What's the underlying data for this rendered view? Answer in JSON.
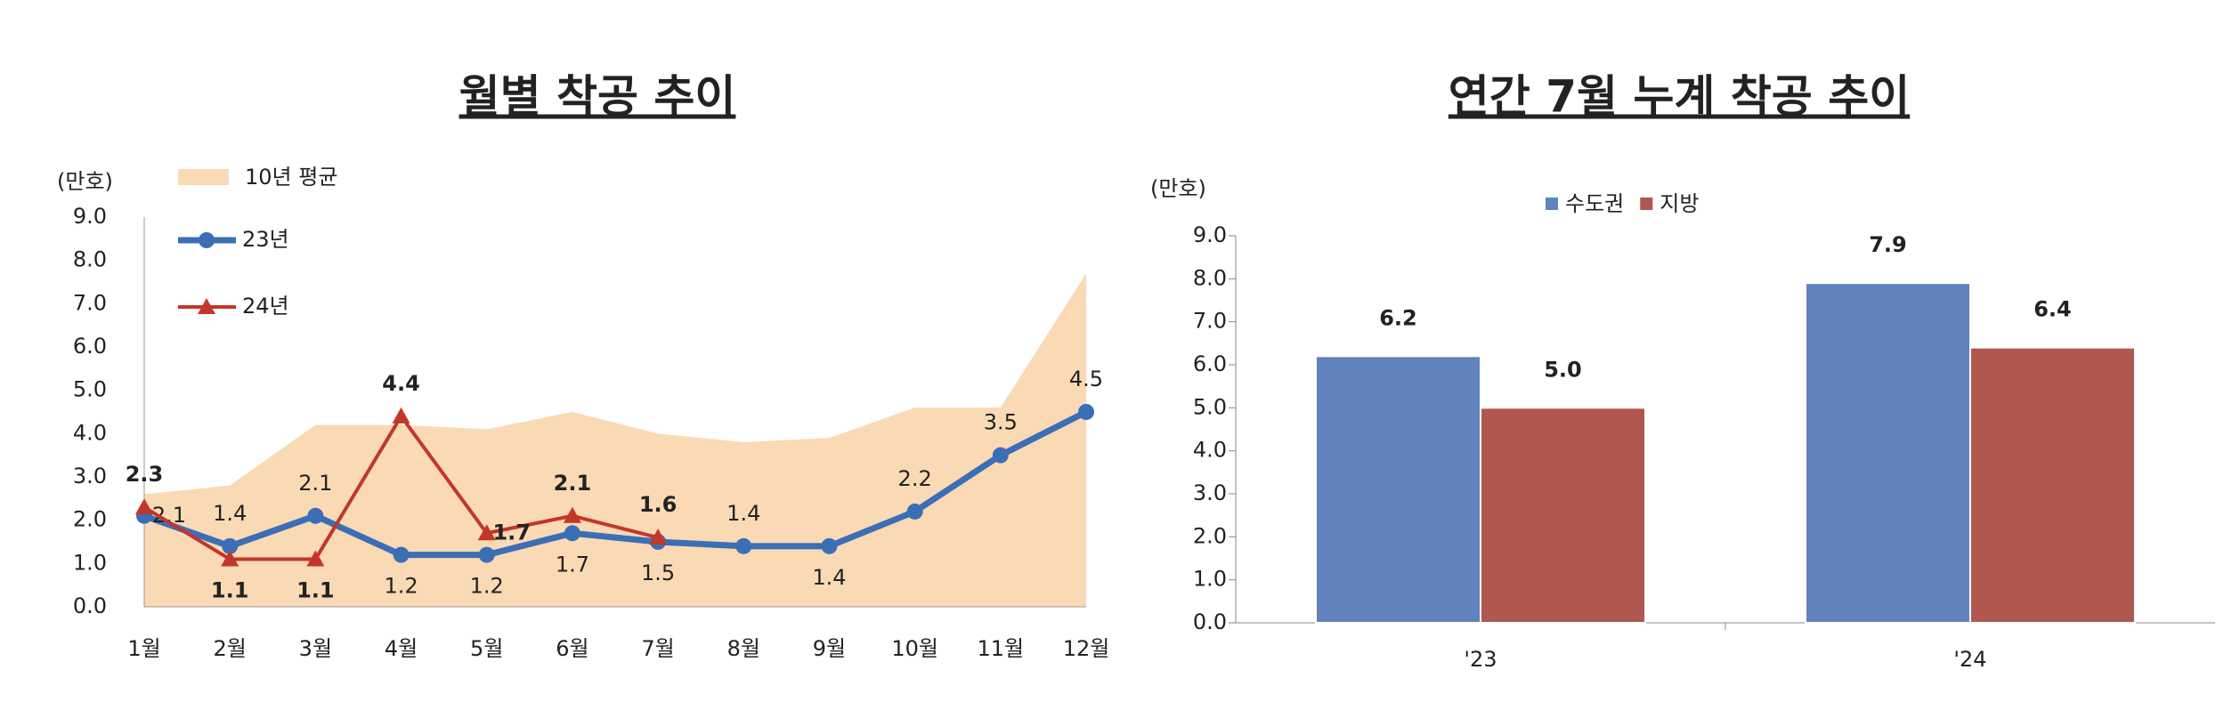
{
  "chart_data": [
    {
      "type": "line",
      "title": "월별 착공 추이",
      "y_label": "(만호)",
      "categories": [
        "1월",
        "2월",
        "3월",
        "4월",
        "5월",
        "6월",
        "7월",
        "8월",
        "9월",
        "10월",
        "11월",
        "12월"
      ],
      "series": [
        {
          "name": "10년 평균",
          "style": "area",
          "color": "#fad9b5",
          "values": [
            2.6,
            2.8,
            4.2,
            4.2,
            4.1,
            4.5,
            4.0,
            3.8,
            3.9,
            4.6,
            4.6,
            7.7
          ]
        },
        {
          "name": "23년",
          "style": "line",
          "marker": "circle",
          "color": "#3a6fb5",
          "values": [
            2.1,
            1.4,
            2.1,
            1.2,
            1.2,
            1.7,
            1.5,
            1.4,
            1.4,
            2.2,
            3.5,
            4.5
          ]
        },
        {
          "name": "24년",
          "style": "line",
          "marker": "triangle",
          "color": "#c3362b",
          "values": [
            2.3,
            1.1,
            1.1,
            4.4,
            1.7,
            2.1,
            1.6,
            null,
            null,
            null,
            null,
            null
          ]
        }
      ],
      "ylim": [
        0,
        9
      ],
      "yticks": [
        {
          "value": 0,
          "label": "0.0"
        },
        {
          "value": 1,
          "label": "1.0"
        },
        {
          "value": 2,
          "label": "2.0"
        },
        {
          "value": 3,
          "label": "3.0"
        },
        {
          "value": 4,
          "label": "4.0"
        },
        {
          "value": 5,
          "label": "5.0"
        },
        {
          "value": 6,
          "label": "6.0"
        },
        {
          "value": 7,
          "label": "7.0"
        },
        {
          "value": 8,
          "label": "8.0"
        },
        {
          "value": 9,
          "label": "9.0"
        }
      ],
      "grid": false
    },
    {
      "type": "bar",
      "title": "연간 7월 누계 착공 추이",
      "y_label": "(만호)",
      "categories": [
        "'23",
        "'24"
      ],
      "series": [
        {
          "name": "수도권",
          "color": "#6083be",
          "values": [
            6.2,
            7.9
          ],
          "value_labels": [
            "6.2",
            "7.9"
          ]
        },
        {
          "name": "지방",
          "color": "#b0574f",
          "values": [
            5.0,
            6.4
          ],
          "value_labels": [
            "5.0",
            "6.4"
          ]
        }
      ],
      "ylim": [
        0,
        9
      ],
      "yticks": [
        {
          "value": 0,
          "label": "0.0"
        },
        {
          "value": 1,
          "label": "1.0"
        },
        {
          "value": 2,
          "label": "2.0"
        },
        {
          "value": 3,
          "label": "3.0"
        },
        {
          "value": 4,
          "label": "4.0"
        },
        {
          "value": 5,
          "label": "5.0"
        },
        {
          "value": 6,
          "label": "6.0"
        },
        {
          "value": 7,
          "label": "7.0"
        },
        {
          "value": 8,
          "label": "8.0"
        },
        {
          "value": 9,
          "label": "9.0"
        }
      ],
      "legend": "top",
      "grid": false
    }
  ]
}
